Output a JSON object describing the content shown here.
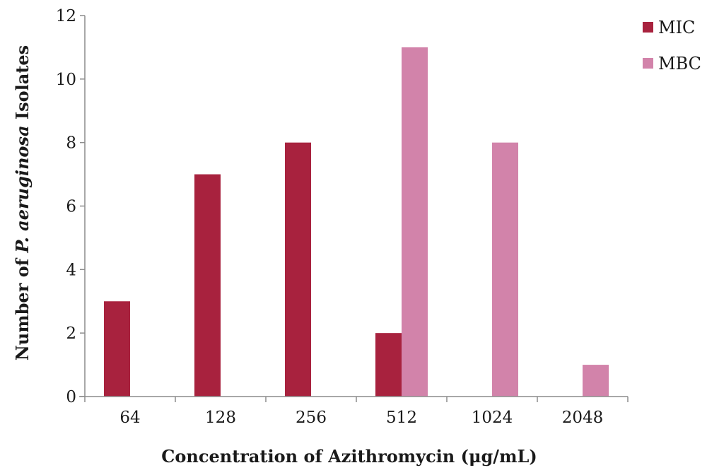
{
  "chart_data": {
    "type": "bar",
    "categories": [
      "64",
      "128",
      "256",
      "512",
      "1024",
      "2048"
    ],
    "series": [
      {
        "name": "MIC",
        "values": [
          3,
          7,
          8,
          2,
          0,
          0
        ],
        "color": "#a8223e"
      },
      {
        "name": "MBC",
        "values": [
          0,
          0,
          0,
          11,
          8,
          1
        ],
        "color": "#d283aa"
      }
    ],
    "yticks": [
      "0",
      "2",
      "4",
      "6",
      "8",
      "10",
      "12"
    ],
    "ylim": [
      0,
      12
    ],
    "xlabel": "Concentration of Azithromycin (μg/mL)",
    "ylabel_prefix": "Number of ",
    "ylabel_italic": "P. aeruginosa",
    "ylabel_suffix": " Isolates",
    "grid": false,
    "legend_position": "top-right"
  }
}
